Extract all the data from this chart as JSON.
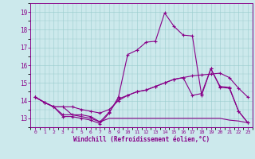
{
  "xlabel": "Windchill (Refroidissement éolien,°C)",
  "bg_color": "#cce9ec",
  "line_color": "#880088",
  "grid_color": "#99cccc",
  "xlim": [
    -0.5,
    23.5
  ],
  "ylim": [
    12.5,
    19.5
  ],
  "yticks": [
    13,
    14,
    15,
    16,
    17,
    18,
    19
  ],
  "xticks": [
    0,
    1,
    2,
    3,
    4,
    5,
    6,
    7,
    8,
    9,
    10,
    11,
    12,
    13,
    14,
    15,
    16,
    17,
    18,
    19,
    20,
    21,
    22,
    23
  ],
  "series": [
    [
      14.2,
      13.9,
      13.65,
      13.65,
      13.2,
      13.1,
      13.0,
      12.8,
      13.0,
      13.0,
      13.0,
      13.0,
      13.0,
      13.0,
      13.0,
      13.0,
      13.0,
      13.0,
      13.0,
      13.0,
      13.0,
      12.9,
      12.85,
      12.75
    ],
    [
      14.2,
      13.9,
      13.65,
      13.65,
      13.65,
      13.5,
      13.4,
      13.3,
      13.5,
      14.0,
      14.3,
      14.5,
      14.6,
      14.8,
      15.0,
      15.2,
      15.3,
      15.4,
      15.45,
      15.5,
      15.55,
      15.3,
      14.7,
      14.2
    ],
    [
      14.2,
      13.9,
      13.65,
      13.2,
      13.2,
      13.2,
      13.1,
      12.8,
      13.35,
      14.1,
      14.3,
      14.5,
      14.6,
      14.8,
      15.0,
      15.2,
      15.3,
      14.3,
      14.4,
      15.8,
      14.8,
      14.75,
      13.4,
      12.75
    ],
    [
      14.2,
      13.9,
      13.65,
      13.1,
      13.1,
      13.0,
      12.9,
      12.7,
      13.3,
      14.2,
      16.6,
      16.85,
      17.3,
      17.35,
      18.95,
      18.2,
      17.7,
      17.65,
      14.3,
      15.8,
      14.75,
      14.7,
      13.4,
      12.75
    ]
  ],
  "has_markers": [
    false,
    true,
    true,
    true
  ]
}
